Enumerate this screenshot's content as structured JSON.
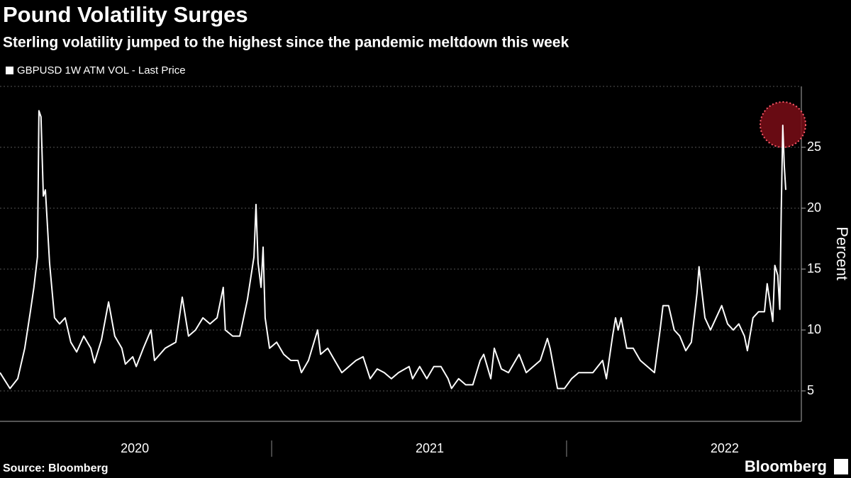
{
  "chart_data": {
    "type": "line",
    "title": "Pound Volatility Surges",
    "subtitle": "Sterling volatility jumped to the highest since the pandemic meltdown this week",
    "y_label": "Percent",
    "source": "Source: Bloomberg",
    "brand": "Bloomberg",
    "xlim": [
      2020.079,
      2022.796
    ],
    "xticks": [
      {
        "value": 2020.5,
        "label": "2020"
      },
      {
        "value": 2021.5,
        "label": "2021"
      },
      {
        "value": 2022.5,
        "label": "2022"
      }
    ],
    "ylim": [
      2.5,
      30
    ],
    "yticks": [
      5,
      10,
      15,
      20,
      25
    ],
    "grid": true,
    "series": [
      {
        "name": "GBPUSD 1W ATM VOL - Last Price",
        "color": "#ffffff",
        "x": [
          2020.079,
          2020.113,
          2020.139,
          2020.163,
          2020.182,
          2020.194,
          2020.206,
          2020.211,
          2020.218,
          2020.226,
          2020.233,
          2020.247,
          2020.264,
          2020.281,
          2020.3,
          2020.319,
          2020.339,
          2020.363,
          2020.387,
          2020.399,
          2020.423,
          2020.447,
          2020.468,
          2020.492,
          2020.504,
          2020.529,
          2020.541,
          2020.565,
          2020.591,
          2020.603,
          2020.639,
          2020.675,
          2020.697,
          2020.718,
          2020.742,
          2020.767,
          2020.791,
          2020.815,
          2020.836,
          2020.843,
          2020.868,
          2020.892,
          2020.918,
          2020.94,
          2020.947,
          2020.954,
          2020.964,
          2020.971,
          2020.978,
          2020.993,
          2021.017,
          2021.041,
          2021.065,
          2021.089,
          2021.101,
          2021.125,
          2021.156,
          2021.166,
          2021.19,
          2021.214,
          2021.238,
          2021.262,
          2021.286,
          2021.31,
          2021.334,
          2021.358,
          2021.382,
          2021.406,
          2021.43,
          2021.466,
          2021.478,
          2021.502,
          2021.526,
          2021.55,
          2021.574,
          2021.598,
          2021.61,
          2021.634,
          2021.658,
          2021.682,
          2021.707,
          2021.719,
          2021.743,
          2021.755,
          2021.779,
          2021.803,
          2021.827,
          2021.839,
          2021.863,
          2021.887,
          2021.911,
          2021.935,
          2021.944,
          2021.969,
          2021.993,
          2022.017,
          2022.041,
          2022.065,
          2022.089,
          2022.122,
          2022.135,
          2022.156,
          2022.166,
          2022.175,
          2022.185,
          2022.204,
          2022.226,
          2022.25,
          2022.274,
          2022.298,
          2022.317,
          2022.327,
          2022.346,
          2022.365,
          2022.384,
          2022.404,
          2022.423,
          2022.442,
          2022.449,
          2022.469,
          2022.488,
          2022.507,
          2022.526,
          2022.546,
          2022.565,
          2022.584,
          2022.603,
          2022.613,
          2022.632,
          2022.651,
          2022.671,
          2022.68,
          2022.699,
          2022.706,
          2022.716,
          2022.723,
          2022.728,
          2022.733,
          2022.738,
          2022.743
        ],
        "values": [
          6.5,
          5.2,
          6,
          8.5,
          11.5,
          13.5,
          16,
          28,
          27.5,
          21,
          21.5,
          15.5,
          11,
          10.5,
          11,
          9,
          8.2,
          9.5,
          8.5,
          7.3,
          9.2,
          12.3,
          9.5,
          8.5,
          7.2,
          7.8,
          7,
          8.5,
          10,
          7.5,
          8.5,
          9,
          12.7,
          9.5,
          10,
          11,
          10.5,
          11,
          13.5,
          10,
          9.5,
          9.5,
          12.5,
          16,
          20.3,
          15.5,
          13.5,
          16.8,
          11,
          8.5,
          9,
          8,
          7.5,
          7.5,
          6.5,
          7.5,
          10,
          8,
          8.5,
          7.5,
          6.5,
          7,
          7.5,
          7.8,
          6,
          6.8,
          6.5,
          6,
          6.5,
          7,
          6,
          7,
          6,
          7,
          7,
          6,
          5.2,
          6,
          5.5,
          5.5,
          7.5,
          8,
          6,
          8.5,
          6.8,
          6.5,
          7.5,
          8,
          6.5,
          7,
          7.5,
          9.3,
          8.5,
          5.2,
          5.2,
          6,
          6.5,
          6.5,
          6.5,
          7.5,
          6,
          9.5,
          11,
          10,
          11,
          8.5,
          8.5,
          7.5,
          7,
          6.5,
          10,
          12,
          12,
          10,
          9.5,
          8.3,
          9,
          13,
          15.2,
          11,
          10,
          11,
          12,
          10.5,
          10,
          10.5,
          9.5,
          8.3,
          11,
          11.5,
          11.5,
          13.8,
          10.7,
          15.3,
          14.5,
          11.7,
          20,
          26.8,
          23.5,
          21.5
        ]
      }
    ]
  }
}
